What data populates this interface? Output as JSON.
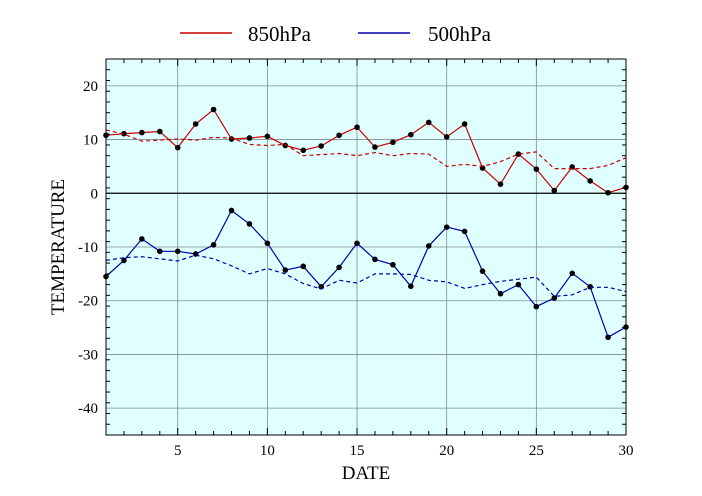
{
  "chart_data": {
    "type": "line",
    "xlabel": "DATE",
    "ylabel": "TEMPERATURE",
    "xlim": [
      1,
      30
    ],
    "ylim": [
      -45,
      25
    ],
    "x_ticks": [
      5,
      10,
      15,
      20,
      25,
      30
    ],
    "y_ticks": [
      20,
      10,
      0,
      -10,
      -20,
      -30,
      -40
    ],
    "grid": true,
    "zero_line": true,
    "background_color": "#e0ffff",
    "legend_position": "top-center",
    "x": [
      1,
      2,
      3,
      4,
      5,
      6,
      7,
      8,
      9,
      10,
      11,
      12,
      13,
      14,
      15,
      16,
      17,
      18,
      19,
      20,
      21,
      22,
      23,
      24,
      25,
      26,
      27,
      28,
      29,
      30
    ],
    "series": [
      {
        "name": "850hPa",
        "color": "#cc0000",
        "style": "solid",
        "markers": true,
        "values": [
          10.8,
          11.1,
          11.3,
          11.5,
          8.5,
          12.9,
          15.6,
          10.1,
          10.3,
          10.6,
          8.9,
          8.0,
          8.8,
          10.8,
          12.3,
          8.6,
          9.5,
          10.9,
          13.2,
          10.5,
          12.9,
          4.7,
          1.7,
          7.3,
          4.5,
          0.5,
          4.9,
          2.3,
          0.1,
          1.1
        ]
      },
      {
        "name": "",
        "color": "#cc0000",
        "style": "dashed",
        "markers": false,
        "values": [
          11.8,
          11.0,
          9.7,
          9.9,
          10.1,
          9.9,
          10.4,
          10.3,
          9.1,
          8.9,
          9.1,
          7.0,
          7.2,
          7.4,
          7.0,
          7.6,
          7.0,
          7.4,
          7.3,
          5.0,
          5.4,
          5.0,
          5.9,
          7.3,
          7.7,
          4.6,
          4.6,
          4.6,
          5.2,
          6.6
        ]
      },
      {
        "name": "500hPa",
        "color": "#0000aa",
        "style": "solid",
        "markers": true,
        "values": [
          -15.5,
          -12.5,
          -8.5,
          -10.8,
          -10.8,
          -11.3,
          -9.6,
          -3.2,
          -5.7,
          -9.3,
          -14.3,
          -13.6,
          -17.4,
          -13.8,
          -9.3,
          -12.3,
          -13.3,
          -17.3,
          -9.8,
          -6.3,
          -7.1,
          -14.5,
          -18.7,
          -17.0,
          -21.1,
          -19.5,
          -14.9,
          -17.4,
          -26.8,
          -24.9
        ]
      },
      {
        "name": "",
        "color": "#0000aa",
        "style": "dashed",
        "markers": false,
        "values": [
          -12.5,
          -12.0,
          -11.8,
          -12.2,
          -12.6,
          -11.5,
          -12.2,
          -13.5,
          -15.0,
          -14.0,
          -15.0,
          -16.8,
          -17.8,
          -16.2,
          -16.7,
          -15.0,
          -15.0,
          -15.1,
          -16.2,
          -16.5,
          -17.7,
          -17.0,
          -16.4,
          -16.0,
          -15.6,
          -19.2,
          -18.9,
          -17.5,
          -17.5,
          -18.3
        ]
      }
    ]
  }
}
